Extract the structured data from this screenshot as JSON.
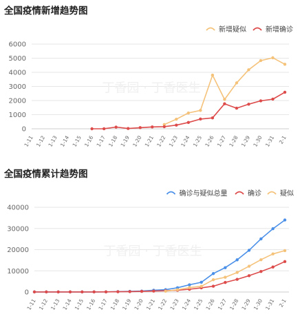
{
  "chart_data": [
    {
      "type": "line",
      "title": "全国疫情新增趋势图",
      "categories": [
        "1-11",
        "1-12",
        "1-13",
        "1-14",
        "1-15",
        "1-16",
        "1-17",
        "1-18",
        "1-19",
        "1-20",
        "1-21",
        "1-22",
        "1-23",
        "1-24",
        "1-25",
        "1-26",
        "1-27",
        "1-28",
        "1-29",
        "1-30",
        "1-31",
        "2-1"
      ],
      "ylim": [
        0,
        6000
      ],
      "yticks": [
        0,
        1000,
        2000,
        3000,
        4000,
        5000,
        6000
      ],
      "grid": true,
      "legend_position": "top-right",
      "series": [
        {
          "name": "新增疑似",
          "color": "#f5c27a",
          "values": [
            null,
            null,
            null,
            null,
            null,
            null,
            null,
            null,
            null,
            null,
            null,
            300,
            680,
            1120,
            1300,
            3800,
            2080,
            3250,
            4180,
            4830,
            5030,
            4570
          ]
        },
        {
          "name": "新增确诊",
          "color": "#dd4b4b",
          "values": [
            null,
            null,
            null,
            null,
            null,
            0,
            4,
            120,
            20,
            80,
            130,
            150,
            260,
            450,
            690,
            770,
            1770,
            1460,
            1740,
            1980,
            2100,
            2590
          ]
        }
      ]
    },
    {
      "type": "line",
      "title": "全国疫情累计趋势图",
      "categories": [
        "1-11",
        "1-12",
        "1-13",
        "1-14",
        "1-15",
        "1-16",
        "1-17",
        "1-18",
        "1-19",
        "1-20",
        "1-21",
        "1-22",
        "1-23",
        "1-24",
        "1-25",
        "1-26",
        "1-27",
        "1-28",
        "1-29",
        "1-30",
        "1-31",
        "2-1"
      ],
      "ylim": [
        0,
        40000
      ],
      "yticks": [
        0,
        10000,
        20000,
        30000,
        40000
      ],
      "grid": true,
      "legend_position": "top-right",
      "series": [
        {
          "name": "确诊与疑似总量",
          "color": "#4a8fe8",
          "values": [
            41,
            41,
            41,
            41,
            41,
            45,
            62,
            198,
            291,
            440,
            830,
            1100,
            2000,
            3400,
            4600,
            8700,
            11500,
            15200,
            19700,
            25100,
            29900,
            34000
          ]
        },
        {
          "name": "确诊",
          "color": "#dd4b4b",
          "values": [
            41,
            41,
            41,
            41,
            41,
            45,
            62,
            121,
            198,
            291,
            440,
            571,
            830,
            1287,
            1975,
            2744,
            4515,
            5974,
            7711,
            9692,
            11791,
            14380
          ]
        },
        {
          "name": "疑似",
          "color": "#f5c27a",
          "values": [
            null,
            null,
            null,
            null,
            null,
            null,
            null,
            null,
            null,
            null,
            null,
            393,
            1072,
            2077,
            2684,
            5794,
            6973,
            9239,
            12167,
            15238,
            17988,
            19544
          ]
        }
      ]
    }
  ],
  "watermark": "丁香园 · 丁香医生"
}
